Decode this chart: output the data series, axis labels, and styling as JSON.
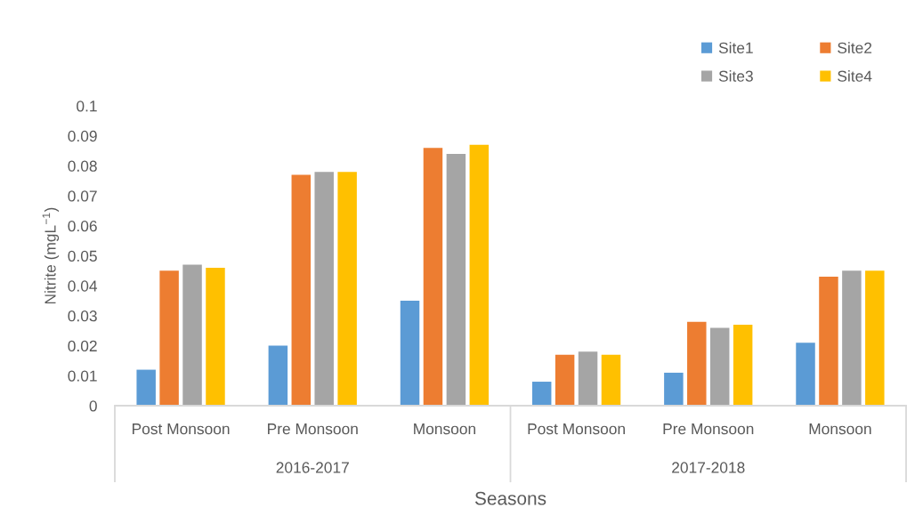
{
  "chart_data": {
    "type": "bar",
    "xlabel": "Seasons",
    "ylabel": "Nitrite (mgL$^{−1}$)",
    "categories": [
      "Post Monsoon",
      "Pre Monsoon",
      "Monsoon",
      "Post Monsoon",
      "Pre Monsoon",
      "Monsoon"
    ],
    "annotations": [
      "2016-2017",
      "2017-2018"
    ],
    "series": [
      {
        "name": "Site1",
        "color": "#5b9bd5",
        "values": [
          0.012,
          0.02,
          0.035,
          0.008,
          0.011,
          0.021
        ]
      },
      {
        "name": "Site2",
        "color": "#ed7d31",
        "values": [
          0.045,
          0.077,
          0.086,
          0.017,
          0.028,
          0.043
        ]
      },
      {
        "name": "Site3",
        "color": "#a5a5a5",
        "values": [
          0.047,
          0.078,
          0.084,
          0.018,
          0.026,
          0.045
        ]
      },
      {
        "name": "Site4",
        "color": "#ffc000",
        "values": [
          0.046,
          0.078,
          0.087,
          0.017,
          0.027,
          0.045
        ]
      }
    ],
    "ylim": [
      0,
      0.1
    ],
    "yticks": [
      0,
      0.01,
      0.02,
      0.03,
      0.04,
      0.05,
      0.06,
      0.07,
      0.08,
      0.09,
      0.1
    ],
    "legend": "top right"
  }
}
